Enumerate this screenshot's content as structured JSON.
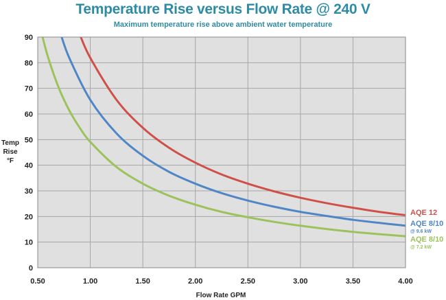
{
  "chart_data": {
    "type": "line",
    "title": "Temperature Rise versus Flow Rate @ 240 V",
    "subtitle": "Maximum temperature rise above ambient water temperature",
    "xlabel": "Flow Rate GPM",
    "ylabel": [
      "Temp",
      "Rise",
      "°F"
    ],
    "xlim": [
      0.5,
      4.0
    ],
    "ylim": [
      0,
      90
    ],
    "xticks": [
      "0.50",
      "1.00",
      "1.50",
      "2.00",
      "2.50",
      "3.00",
      "3.50",
      "4.00"
    ],
    "yticks": [
      "0",
      "10",
      "20",
      "30",
      "40",
      "50",
      "60",
      "70",
      "80",
      "90"
    ],
    "grid": true,
    "background": "#e0e0e0",
    "series": [
      {
        "name": "AQE 12",
        "sub": "",
        "color": "#cf5048",
        "x": [
          0.9,
          1.0,
          1.25,
          1.5,
          1.75,
          2.0,
          2.25,
          2.5,
          2.75,
          3.0,
          3.25,
          3.5,
          3.75,
          4.0
        ],
        "values": [
          91.0,
          81.9,
          65.5,
          54.6,
          46.8,
          41.0,
          36.4,
          32.8,
          29.8,
          27.3,
          25.2,
          23.4,
          21.8,
          20.5
        ]
      },
      {
        "name": "AQE 8/10",
        "sub": "@ 9.6 kW",
        "color": "#4f86c6",
        "x": [
          0.72,
          0.8,
          1.0,
          1.25,
          1.5,
          1.75,
          2.0,
          2.25,
          2.5,
          2.75,
          3.0,
          3.25,
          3.5,
          3.75,
          4.0
        ],
        "values": [
          91.0,
          81.9,
          65.5,
          52.4,
          43.7,
          37.4,
          32.8,
          29.1,
          26.2,
          23.8,
          21.8,
          20.2,
          18.7,
          17.5,
          16.4
        ]
      },
      {
        "name": "AQE 8/10",
        "sub": "@ 7.2 kW",
        "color": "#9cc25c",
        "x": [
          0.54,
          0.6,
          0.7,
          0.8,
          0.9,
          1.0,
          1.25,
          1.5,
          1.75,
          2.0,
          2.25,
          2.5,
          2.75,
          3.0,
          3.25,
          3.5,
          3.75,
          4.0
        ],
        "values": [
          91.0,
          81.9,
          70.2,
          61.4,
          54.6,
          49.1,
          39.3,
          32.8,
          28.1,
          24.6,
          21.8,
          19.7,
          17.9,
          16.4,
          15.1,
          14.0,
          13.1,
          12.3
        ]
      }
    ]
  }
}
